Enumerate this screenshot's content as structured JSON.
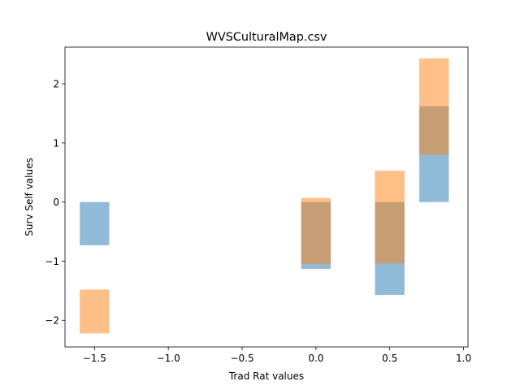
{
  "chart_data": {
    "type": "bar",
    "title": "WVSCulturalMap.csv",
    "xlabel": "Trad Rat values",
    "ylabel": "Surv Self values",
    "xlim": [
      -1.7,
      1.03
    ],
    "ylim": [
      -2.45,
      2.62
    ],
    "bar_width": 0.2,
    "x_ticks": [
      {
        "value": -1.5,
        "label": "−1.5"
      },
      {
        "value": -1.0,
        "label": "−1.0"
      },
      {
        "value": -0.5,
        "label": "−0.5"
      },
      {
        "value": 0.0,
        "label": "0.0"
      },
      {
        "value": 0.5,
        "label": "0.5"
      },
      {
        "value": 1.0,
        "label": "1.0"
      }
    ],
    "y_ticks": [
      {
        "value": -2,
        "label": "−2"
      },
      {
        "value": -1,
        "label": "−1"
      },
      {
        "value": 0,
        "label": "0"
      },
      {
        "value": 1,
        "label": "1"
      },
      {
        "value": 2,
        "label": "2"
      }
    ],
    "grid": false,
    "legend": "none",
    "series": [
      {
        "color": "#1f77b4",
        "opacity": 0.5,
        "bars": [
          {
            "x": -1.5,
            "bottom": 0,
            "top": -0.73
          },
          {
            "x": 0.0,
            "bottom": 0,
            "top": -1.13
          },
          {
            "x": 0.5,
            "bottom": 0,
            "top": -1.57
          },
          {
            "x": 0.8,
            "bottom": 0,
            "top": 1.62
          }
        ]
      },
      {
        "color": "#ff7f0e",
        "opacity": 0.5,
        "bars": [
          {
            "x": -1.5,
            "bottom": -1.48,
            "top": -2.22
          },
          {
            "x": 0.0,
            "bottom": 0.07,
            "top": -1.05
          },
          {
            "x": 0.5,
            "bottom": 0.53,
            "top": -1.04
          },
          {
            "x": 0.8,
            "bottom": 0.8,
            "top": 2.43
          }
        ]
      }
    ]
  }
}
